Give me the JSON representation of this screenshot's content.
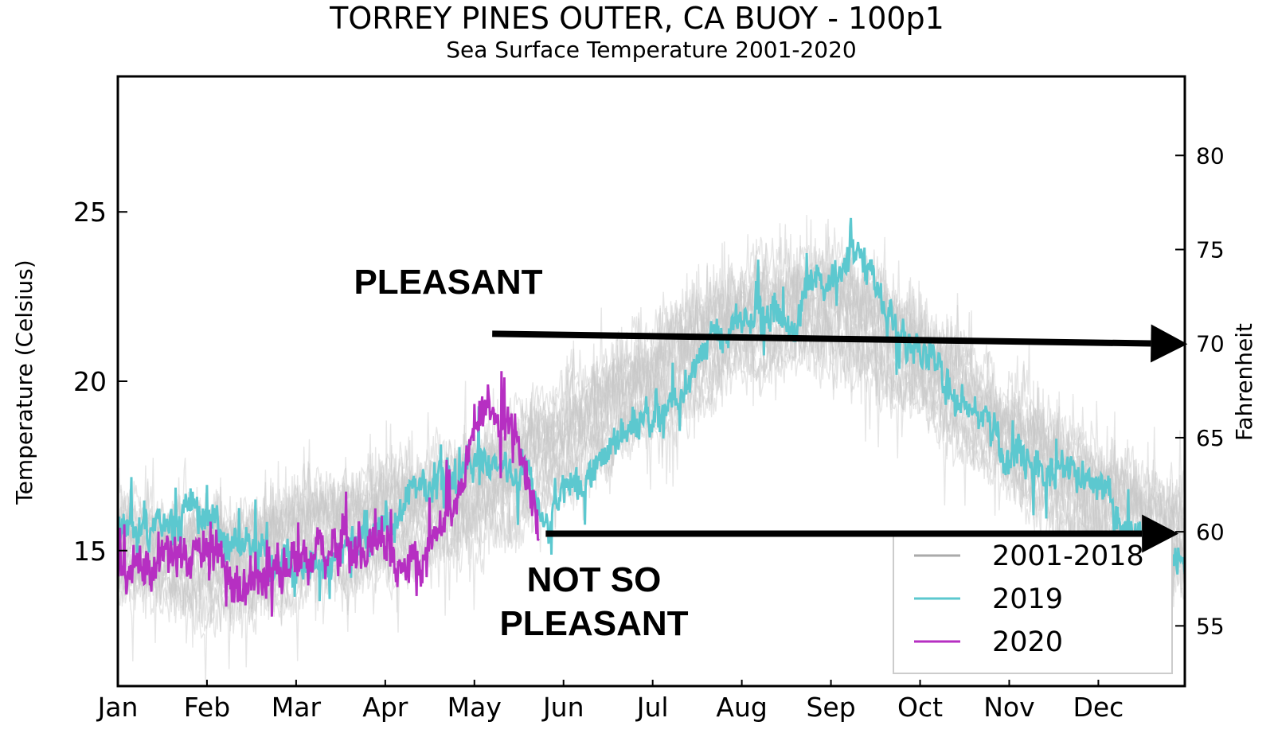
{
  "chart_data": {
    "type": "line",
    "title": "TORREY PINES OUTER, CA BUOY - 100p1",
    "subtitle": "Sea Surface Temperature 2001-2020",
    "ylabel": "Temperature (Celsius)",
    "ylabel_right": "Fahrenheit",
    "xlabel": "",
    "categories": [
      "Jan",
      "Feb",
      "Mar",
      "Apr",
      "May",
      "Jun",
      "Jul",
      "Aug",
      "Sep",
      "Oct",
      "Nov",
      "Dec"
    ],
    "yticks": [
      15,
      20,
      25
    ],
    "yticks_right": [
      55,
      60,
      65,
      70,
      75,
      80
    ],
    "ylim": [
      11.0,
      29.0
    ],
    "xlim_month": [
      1.0,
      12.97
    ],
    "grid": false,
    "legend_position": "bottom-right",
    "colors": {
      "historic": "#c8c8c8",
      "y2019": "#5cc8cf",
      "y2020": "#b62fc2",
      "arrow": "#000000"
    },
    "series": [
      {
        "name": "2001-2018",
        "x": [
          1.0,
          1.5,
          2.0,
          2.5,
          3.0,
          3.5,
          4.0,
          4.5,
          5.0,
          5.5,
          6.0,
          6.5,
          7.0,
          7.5,
          8.0,
          8.5,
          9.0,
          9.5,
          10.0,
          10.5,
          11.0,
          11.5,
          12.0,
          12.5,
          12.97
        ],
        "y": [
          15.2,
          15.0,
          14.8,
          15.0,
          15.4,
          15.7,
          16.1,
          16.4,
          16.9,
          17.6,
          18.4,
          19.3,
          20.2,
          21.1,
          21.9,
          22.3,
          22.2,
          21.7,
          20.7,
          19.6,
          18.4,
          17.5,
          16.6,
          15.9,
          15.4
        ]
      },
      {
        "name": "2019",
        "x": [
          1.0,
          1.3,
          1.6,
          2.0,
          2.3,
          2.6,
          3.0,
          3.3,
          3.6,
          4.0,
          4.3,
          4.6,
          5.0,
          5.3,
          5.6,
          5.8,
          6.0,
          6.3,
          6.6,
          7.0,
          7.3,
          7.6,
          8.0,
          8.3,
          8.6,
          9.0,
          9.3,
          9.6,
          10.0,
          10.3,
          10.6,
          11.0,
          11.3,
          11.6,
          12.0,
          12.3,
          12.6,
          12.97
        ],
        "y": [
          16.0,
          15.9,
          15.8,
          15.7,
          15.4,
          15.0,
          14.6,
          14.6,
          15.2,
          15.8,
          16.6,
          17.2,
          17.6,
          17.6,
          17.4,
          15.5,
          16.8,
          17.6,
          18.4,
          19.0,
          19.8,
          21.0,
          21.8,
          22.5,
          22.0,
          23.2,
          23.8,
          22.3,
          21.0,
          20.0,
          19.4,
          17.8,
          17.6,
          17.2,
          16.8,
          15.6,
          15.0,
          14.6
        ]
      },
      {
        "name": "2020",
        "x": [
          1.0,
          1.2,
          1.4,
          1.6,
          1.8,
          2.0,
          2.2,
          2.4,
          2.6,
          2.8,
          3.0,
          3.2,
          3.4,
          3.6,
          3.8,
          4.0,
          4.2,
          4.4,
          4.6,
          4.8,
          5.0,
          5.15,
          5.3,
          5.45,
          5.6,
          5.72
        ],
        "y": [
          15.0,
          14.6,
          14.5,
          14.6,
          14.8,
          14.9,
          14.3,
          14.2,
          14.4,
          14.6,
          14.7,
          14.9,
          15.0,
          15.1,
          15.2,
          15.0,
          14.6,
          14.5,
          15.8,
          16.4,
          18.2,
          19.6,
          18.6,
          18.2,
          17.2,
          16.0
        ]
      }
    ],
    "annotations": [
      {
        "text": "PLEASANT",
        "arrow_from": [
          5.2,
          21.4
        ],
        "arrow_to": [
          13.0,
          21.1
        ]
      },
      {
        "text": "NOT SO",
        "text2": "PLEASANT",
        "arrow_from": [
          5.8,
          15.5
        ],
        "arrow_to": [
          12.9,
          15.5
        ]
      }
    ]
  }
}
